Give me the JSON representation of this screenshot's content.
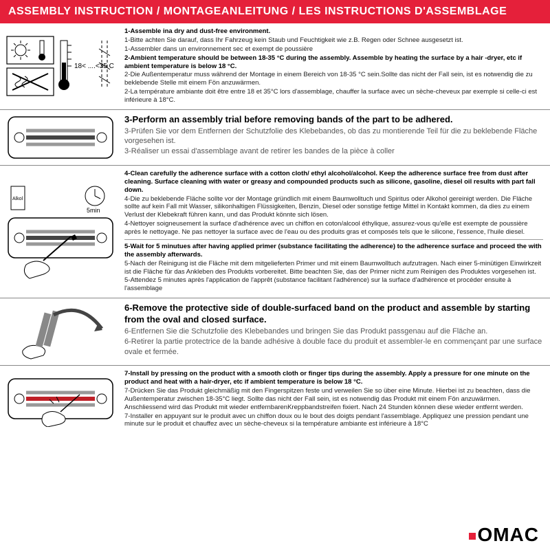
{
  "colors": {
    "header_bg": "#e5203a",
    "header_text": "#ffffff",
    "text": "#222222",
    "text_muted": "#555555",
    "border": "#888888"
  },
  "typography": {
    "header_fontsize": 16,
    "body_fontsize": 9.5,
    "big_fontsize": 13,
    "sub_fontsize": 11
  },
  "header": "ASSEMBLY INSTRUCTION / MONTAGEANLEITUNG / LES INSTRUCTIONS D'ASSEMBLAGE",
  "rows": [
    {
      "icon": "temp",
      "icon_label": "18< ....<35 C",
      "lines": [
        {
          "cls": "bold",
          "t": "1-Assemble ina dry and dust-free environment."
        },
        {
          "cls": "",
          "t": "1-Bitte achten Sie darauf, dass Ihr Fahrzeug kein Staub und Feuchtigkeit wie z.B. Regen oder Schnee ausgesetzt ist."
        },
        {
          "cls": "",
          "t": "1-Assembler dans un environnement sec et exempt de poussière"
        },
        {
          "cls": "",
          "t": " "
        },
        {
          "cls": "bold",
          "t": "2-Ambient temperature should be between 18-35 °C  during the assembly. Assemble by heating the surface by a hair -dryer, etc if ambient temperature is below 18 °C."
        },
        {
          "cls": "",
          "t": "2-Die Außentemperatur muss während der Montage in einem Bereich von 18-35 °C sein.Sollte das nicht der Fall sein, ist es notwendig die zu beklebende Stelle mit einem Fön anzuwärmen."
        },
        {
          "cls": "",
          "t": "2-La température ambiante doit être entre 18 et 35°C lors d'assemblage, chauffer la surface avec un sèche-cheveux par exemple si celle-ci est inférieure à 18°C."
        }
      ]
    },
    {
      "icon": "trial",
      "lines": [
        {
          "cls": "big",
          "t": "3-Perform an assembly trial before removing bands of the part to be adhered."
        },
        {
          "cls": "sub",
          "t": "3-Prüfen Sie vor dem Entfernen der Schutzfolie des Klebebandes, ob das zu montierende Teil für die zu beklebende Fläche vorgesehen ist."
        },
        {
          "cls": "sub",
          "t": "3-Réaliser un essai d'assemblage avant de retirer les bandes de la pièce à coller"
        }
      ]
    },
    {
      "icon": "clean",
      "icon_label": "5min",
      "lines": [
        {
          "cls": "bold",
          "t": "4-Clean carefully the adherence surface with a cotton cloth/ ethyl alcohol/alcohol. Keep the adherence surface free from dust after cleaning. Surface cleaning with water or greasy and compounded products such as silicone, gasoline, diesel oil results with part fall down."
        },
        {
          "cls": "",
          "t": "4-Die zu beklebende Fläche sollte vor der Montage gründlich mit einem Baumwolltuch und Spiritus oder Alkohol gereinigt werden. Die Fläche sollte auf kein Fall mit Wasser, silikonhaltigen Flüssigkeiten, Benzin, Diesel oder sonstige fettige Mittel in Kontakt kommen, da dies zu einem Verlust der Klebekraft führen kann, und das Produkt könnte sich lösen."
        },
        {
          "cls": "",
          "t": "4-Nettoyer soigneusement la surface d'adhérence avec un chiffon en coton/alcool éthylique, assurez-vous qu'elle est exempte de poussière après le nettoyage. Ne pas nettoyer la surface avec de l'eau ou des produits gras et composés tels que le silicone, l'essence, l'huile diesel."
        },
        {
          "cls": "",
          "t": "—"
        },
        {
          "cls": "bold",
          "t": "5-Wait for 5 minutues after having applied primer (substance facilitating the adherence) to the adherence surface and proceed the with the assembly afterwards."
        },
        {
          "cls": "",
          "t": "5-Nach der Reinigung ist die Fläche mit dem mitgelieferten Primer und mit einem Baumwolltuch aufzutragen. Nach einer 5-minütigen Einwirkzeit ist die Fläche für das Ankleben des Produkts vorbereitet. Bitte beachten Sie, das der Primer nicht zum Reinigen des Produktes vorgesehen ist."
        },
        {
          "cls": "",
          "t": "5-Attendez 5 minutes après l'application de l'apprêt (substance facilitant l'adhérence) sur la surface d'adhérence et procéder ensuite à l'assemblage"
        }
      ]
    },
    {
      "icon": "peel",
      "lines": [
        {
          "cls": "big",
          "t": "6-Remove the protective side of double-surfaced band on the product and assemble by starting from the oval and closed surface."
        },
        {
          "cls": "sub",
          "t": "6-Entfernen Sie die Schutzfolie des Klebebandes und bringen Sie das Produkt passgenau auf die Fläche an."
        },
        {
          "cls": "sub",
          "t": "6-Retirer la partie protectrice de la bande adhésive à double face du produit et assembler-le en commençant par une surface ovale et fermée."
        }
      ]
    },
    {
      "icon": "press",
      "lines": [
        {
          "cls": "bold",
          "t": "7-Install by pressing on the product with a smooth cloth or finger tips during the assembly. Apply a pressure for one minute on the product and heat with a hair-dryer, etc if ambient temperature is below 18 °C."
        },
        {
          "cls": "",
          "t": "7-Drücken Sie das Produkt gleichmäßig mit den Fingerspitzen feste und verweilen Sie so über eine Minute. Hierbei ist zu beachten, dass die Außentemperatur zwischen 18-35°C liegt. Sollte das nicht der Fall sein, ist es notwendig das Produkt mit einem Fön anzuwärmen. Anschliessend wird das Produkt mit wieder entfernbarenKreppbandstreifen fixiert. Nach 24 Stunden können diese wieder entfernt werden."
        },
        {
          "cls": "",
          "t": "7-Installer en appuyant sur le produit avec un chiffon doux ou le bout des doigts pendant l'assemblage. Appliquez une pression pendant une minute sur le produit et chauffez avec un sèche-cheveux si la température ambiante est inférieure à 18°C"
        }
      ]
    }
  ],
  "brand": "OMAC"
}
